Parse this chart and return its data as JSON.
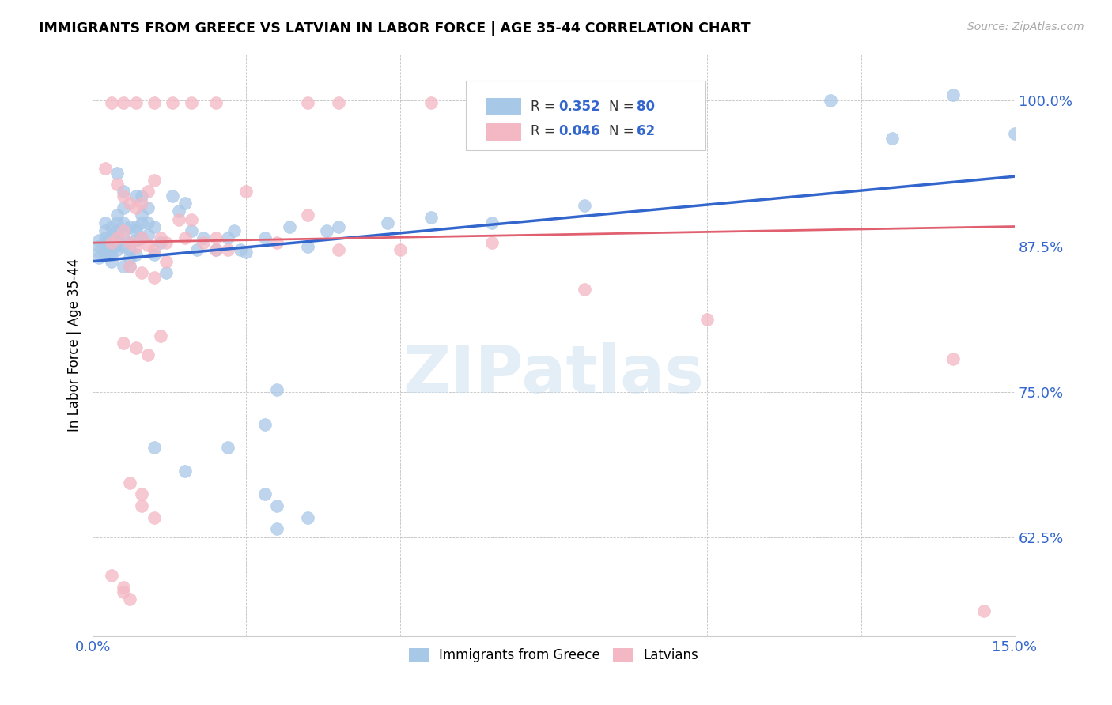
{
  "title": "IMMIGRANTS FROM GREECE VS LATVIAN IN LABOR FORCE | AGE 35-44 CORRELATION CHART",
  "source": "Source: ZipAtlas.com",
  "ylabel": "In Labor Force | Age 35-44",
  "watermark": "ZIPatlas",
  "blue_color": "#a8c8e8",
  "pink_color": "#f4b8c4",
  "blue_line_color": "#3366cc",
  "pink_line_color": "#e06070",
  "blue_scatter": [
    [
      0.001,
      0.88
    ],
    [
      0.001,
      0.875
    ],
    [
      0.001,
      0.87
    ],
    [
      0.001,
      0.865
    ],
    [
      0.002,
      0.895
    ],
    [
      0.002,
      0.888
    ],
    [
      0.002,
      0.882
    ],
    [
      0.002,
      0.878
    ],
    [
      0.002,
      0.872
    ],
    [
      0.002,
      0.868
    ],
    [
      0.003,
      0.892
    ],
    [
      0.003,
      0.885
    ],
    [
      0.003,
      0.88
    ],
    [
      0.003,
      0.876
    ],
    [
      0.003,
      0.872
    ],
    [
      0.003,
      0.867
    ],
    [
      0.003,
      0.862
    ],
    [
      0.004,
      0.938
    ],
    [
      0.004,
      0.902
    ],
    [
      0.004,
      0.895
    ],
    [
      0.004,
      0.888
    ],
    [
      0.004,
      0.882
    ],
    [
      0.004,
      0.876
    ],
    [
      0.004,
      0.872
    ],
    [
      0.005,
      0.922
    ],
    [
      0.005,
      0.908
    ],
    [
      0.005,
      0.895
    ],
    [
      0.005,
      0.885
    ],
    [
      0.005,
      0.875
    ],
    [
      0.005,
      0.858
    ],
    [
      0.006,
      0.892
    ],
    [
      0.006,
      0.878
    ],
    [
      0.006,
      0.872
    ],
    [
      0.006,
      0.865
    ],
    [
      0.006,
      0.858
    ],
    [
      0.007,
      0.918
    ],
    [
      0.007,
      0.892
    ],
    [
      0.007,
      0.888
    ],
    [
      0.007,
      0.88
    ],
    [
      0.007,
      0.868
    ],
    [
      0.008,
      0.918
    ],
    [
      0.008,
      0.902
    ],
    [
      0.008,
      0.895
    ],
    [
      0.008,
      0.882
    ],
    [
      0.009,
      0.908
    ],
    [
      0.009,
      0.895
    ],
    [
      0.009,
      0.885
    ],
    [
      0.01,
      0.892
    ],
    [
      0.01,
      0.868
    ],
    [
      0.011,
      0.878
    ],
    [
      0.012,
      0.852
    ],
    [
      0.013,
      0.918
    ],
    [
      0.014,
      0.905
    ],
    [
      0.015,
      0.912
    ],
    [
      0.016,
      0.888
    ],
    [
      0.017,
      0.872
    ],
    [
      0.018,
      0.882
    ],
    [
      0.02,
      0.872
    ],
    [
      0.022,
      0.882
    ],
    [
      0.023,
      0.888
    ],
    [
      0.024,
      0.872
    ],
    [
      0.025,
      0.87
    ],
    [
      0.028,
      0.882
    ],
    [
      0.03,
      0.752
    ],
    [
      0.032,
      0.892
    ],
    [
      0.035,
      0.875
    ],
    [
      0.038,
      0.888
    ],
    [
      0.04,
      0.892
    ],
    [
      0.022,
      0.702
    ],
    [
      0.028,
      0.722
    ],
    [
      0.03,
      0.632
    ],
    [
      0.035,
      0.642
    ],
    [
      0.028,
      0.662
    ],
    [
      0.03,
      0.652
    ],
    [
      0.01,
      0.702
    ],
    [
      0.015,
      0.682
    ],
    [
      0.12,
      1.0
    ],
    [
      0.14,
      1.005
    ],
    [
      0.13,
      0.968
    ],
    [
      0.15,
      0.972
    ],
    [
      0.048,
      0.895
    ],
    [
      0.055,
      0.9
    ],
    [
      0.065,
      0.895
    ],
    [
      0.08,
      0.91
    ]
  ],
  "pink_scatter": [
    [
      0.002,
      0.942
    ],
    [
      0.004,
      0.928
    ],
    [
      0.005,
      0.918
    ],
    [
      0.006,
      0.912
    ],
    [
      0.007,
      0.908
    ],
    [
      0.008,
      0.912
    ],
    [
      0.009,
      0.922
    ],
    [
      0.01,
      0.932
    ],
    [
      0.003,
      0.878
    ],
    [
      0.004,
      0.882
    ],
    [
      0.005,
      0.888
    ],
    [
      0.006,
      0.878
    ],
    [
      0.007,
      0.875
    ],
    [
      0.008,
      0.882
    ],
    [
      0.009,
      0.876
    ],
    [
      0.01,
      0.872
    ],
    [
      0.011,
      0.882
    ],
    [
      0.012,
      0.878
    ],
    [
      0.014,
      0.898
    ],
    [
      0.015,
      0.882
    ],
    [
      0.016,
      0.898
    ],
    [
      0.018,
      0.878
    ],
    [
      0.02,
      0.872
    ],
    [
      0.006,
      0.858
    ],
    [
      0.008,
      0.852
    ],
    [
      0.01,
      0.848
    ],
    [
      0.012,
      0.862
    ],
    [
      0.005,
      0.792
    ],
    [
      0.007,
      0.788
    ],
    [
      0.009,
      0.782
    ],
    [
      0.011,
      0.798
    ],
    [
      0.006,
      0.672
    ],
    [
      0.008,
      0.662
    ],
    [
      0.008,
      0.652
    ],
    [
      0.01,
      0.642
    ],
    [
      0.003,
      0.592
    ],
    [
      0.005,
      0.582
    ],
    [
      0.005,
      0.578
    ],
    [
      0.006,
      0.572
    ],
    [
      0.025,
      0.922
    ],
    [
      0.035,
      0.902
    ],
    [
      0.02,
      0.882
    ],
    [
      0.022,
      0.872
    ],
    [
      0.03,
      0.878
    ],
    [
      0.04,
      0.872
    ],
    [
      0.05,
      0.872
    ],
    [
      0.065,
      0.878
    ],
    [
      0.1,
      0.812
    ],
    [
      0.14,
      0.778
    ],
    [
      0.145,
      0.562
    ],
    [
      0.003,
      0.998
    ],
    [
      0.005,
      0.998
    ],
    [
      0.007,
      0.998
    ],
    [
      0.01,
      0.998
    ],
    [
      0.013,
      0.998
    ],
    [
      0.016,
      0.998
    ],
    [
      0.02,
      0.998
    ],
    [
      0.035,
      0.998
    ],
    [
      0.04,
      0.998
    ],
    [
      0.055,
      0.998
    ],
    [
      0.07,
      0.998
    ],
    [
      0.08,
      0.838
    ]
  ],
  "xlim": [
    0.0,
    0.15
  ],
  "ylim": [
    0.54,
    1.04
  ],
  "blue_line_x": [
    0.0,
    0.15
  ],
  "blue_line_y": [
    0.862,
    0.935
  ],
  "pink_line_x": [
    0.0,
    0.15
  ],
  "pink_line_y": [
    0.878,
    0.892
  ],
  "figsize": [
    14.06,
    8.92
  ],
  "dpi": 100
}
